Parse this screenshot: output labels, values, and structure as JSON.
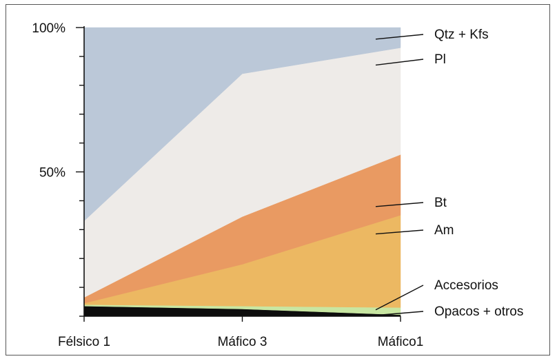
{
  "chart_data": {
    "type": "area",
    "stacked": true,
    "normalized": true,
    "categories": [
      "Félsico 1",
      "Máfico 3",
      "Máfico1"
    ],
    "y_ticks": [
      {
        "value": 100,
        "label": "100%"
      },
      {
        "value": 50,
        "label": "50%"
      }
    ],
    "ylim": [
      0,
      100
    ],
    "grid": false,
    "legend_placement": "right",
    "series": [
      {
        "name": "Opacos + otros",
        "color": "#0d0d0d",
        "values": [
          3.5,
          2.5,
          0.5
        ]
      },
      {
        "name": "Accesorios",
        "color": "#c8e6a2",
        "values": [
          0.5,
          1.0,
          2.5
        ]
      },
      {
        "name": "Am",
        "color": "#ecb862",
        "values": [
          0.5,
          14.5,
          32.0
        ]
      },
      {
        "name": "Bt",
        "color": "#e99a62",
        "values": [
          2.0,
          16.5,
          21.0
        ]
      },
      {
        "name": "Pl",
        "color": "#eeebe8",
        "values": [
          26.5,
          49.5,
          37.0
        ]
      },
      {
        "name": "Qtz + Kfs",
        "color": "#bbc8d8",
        "values": [
          67.0,
          16.0,
          7.0
        ]
      }
    ],
    "legend": [
      {
        "name": "Qtz + Kfs",
        "anchor_y": 96
      },
      {
        "name": "Pl",
        "anchor_y": 87
      },
      {
        "name": "Bt",
        "anchor_y": 38
      },
      {
        "name": "Am",
        "anchor_y": 28.5
      },
      {
        "name": "Accesorios",
        "anchor_y": 2.2
      },
      {
        "name": "Opacos + otros",
        "anchor_y": 0.3
      }
    ]
  }
}
